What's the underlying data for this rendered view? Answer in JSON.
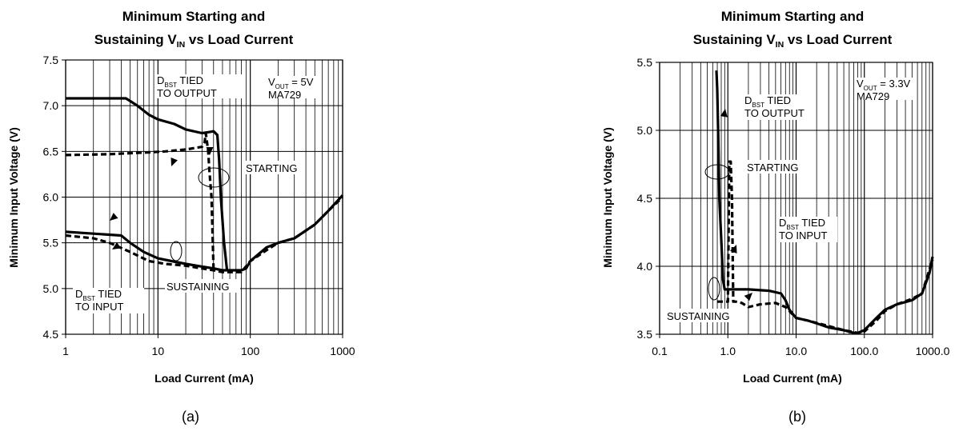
{
  "chart_data": [
    {
      "type": "line",
      "caption": "(a)",
      "title": [
        "Minimum Starting and",
        "Sustaining V",
        "IN",
        " vs Load Current"
      ],
      "xlabel": "Load Current (mA)",
      "ylabel": "Minimum Input Voltage (V)",
      "xscale": "log",
      "xlim": [
        1,
        1000
      ],
      "ylim": [
        4.5,
        7.5
      ],
      "xticks": [
        "1",
        "10",
        "100",
        "1000"
      ],
      "yticks": [
        "4.5",
        "5.0",
        "5.5",
        "6.0",
        "6.5",
        "7.0",
        "7.5"
      ],
      "grid": true,
      "annotations": {
        "dbst_output": [
          "D",
          "BST",
          " TIED",
          "TO OUTPUT"
        ],
        "vout": [
          "V",
          "OUT",
          " = 5V",
          "MA729"
        ],
        "starting": "STARTING",
        "sustaining": "SUSTAINING",
        "dbst_input": [
          "D",
          "BST",
          " TIED",
          "TO INPUT"
        ]
      },
      "series": [
        {
          "style": "solid",
          "x": [
            1,
            3,
            4.5,
            6,
            8,
            10,
            15,
            20,
            30,
            35,
            40,
            44,
            46,
            48,
            52,
            56
          ],
          "y": [
            7.08,
            7.08,
            7.08,
            7.0,
            6.9,
            6.85,
            6.8,
            6.74,
            6.7,
            6.71,
            6.72,
            6.68,
            6.4,
            6.0,
            5.5,
            5.2
          ]
        },
        {
          "style": "dashed",
          "x": [
            1,
            3,
            5,
            8,
            12,
            20,
            30,
            32,
            33,
            34,
            35,
            36,
            38,
            40
          ],
          "y": [
            6.46,
            6.47,
            6.48,
            6.49,
            6.5,
            6.52,
            6.55,
            6.6,
            6.7,
            6.6,
            6.5,
            6.3,
            6.0,
            5.2
          ]
        },
        {
          "style": "solid",
          "x": [
            1,
            2,
            4,
            5,
            7,
            10,
            14,
            20,
            30,
            40,
            50,
            60,
            80,
            90,
            100,
            150,
            200,
            300,
            500,
            700,
            1000
          ],
          "y": [
            5.62,
            5.6,
            5.58,
            5.5,
            5.4,
            5.33,
            5.3,
            5.27,
            5.24,
            5.22,
            5.2,
            5.2,
            5.2,
            5.22,
            5.3,
            5.45,
            5.5,
            5.55,
            5.7,
            5.85,
            6.02
          ]
        },
        {
          "style": "dashed",
          "x": [
            1,
            2,
            3,
            5,
            8,
            12,
            20,
            30,
            40,
            50,
            60,
            80,
            100,
            150,
            200,
            300,
            500,
            700,
            1000
          ],
          "y": [
            5.58,
            5.55,
            5.5,
            5.4,
            5.3,
            5.27,
            5.25,
            5.22,
            5.2,
            5.18,
            5.18,
            5.18,
            5.3,
            5.42,
            5.5,
            5.55,
            5.7,
            5.85,
            6.0
          ]
        }
      ]
    },
    {
      "type": "line",
      "caption": "(b)",
      "title": [
        "Minimum Starting and",
        "Sustaining V",
        "IN",
        " vs Load Current"
      ],
      "xlabel": "Load Current (mA)",
      "ylabel": "Minimum Input Voltage (V)",
      "xscale": "log",
      "xlim": [
        0.1,
        1000
      ],
      "ylim": [
        3.5,
        5.5
      ],
      "xticks": [
        "0.1",
        "1.0",
        "10.0",
        "100.0",
        "1000.0"
      ],
      "yticks": [
        "3.5",
        "4.0",
        "4.5",
        "5.0",
        "5.5"
      ],
      "grid": true,
      "annotations": {
        "dbst_output": [
          "D",
          "BST",
          " TIED",
          "TO OUTPUT"
        ],
        "vout": [
          "V",
          "OUT",
          " = 3.3V",
          "MA729"
        ],
        "starting": "STARTING",
        "sustaining": "SUSTAINING",
        "dbst_input": [
          "D",
          "BST",
          " TIED",
          "TO INPUT"
        ]
      },
      "series": [
        {
          "style": "solid",
          "x": [
            0.68,
            0.7,
            0.72,
            0.75,
            0.8,
            0.85,
            0.9,
            1.0,
            2,
            4,
            6,
            7,
            8,
            10,
            15,
            20,
            30,
            50,
            70,
            80,
            100,
            150,
            200,
            300,
            500,
            700,
            900,
            1000
          ],
          "y": [
            5.44,
            5.3,
            5.0,
            4.5,
            4.2,
            3.9,
            3.83,
            3.83,
            3.83,
            3.82,
            3.8,
            3.75,
            3.68,
            3.62,
            3.6,
            3.58,
            3.55,
            3.53,
            3.51,
            3.51,
            3.53,
            3.62,
            3.68,
            3.72,
            3.75,
            3.8,
            3.95,
            4.07
          ]
        },
        {
          "style": "dashed",
          "x": [
            0.7,
            0.8,
            1.0,
            1.05,
            1.1,
            1.15,
            1.2,
            1.3,
            1.6,
            2,
            3,
            5,
            7,
            10,
            15,
            30,
            50,
            80,
            100,
            150,
            200,
            300,
            500,
            700,
            1000
          ],
          "y": [
            3.74,
            3.74,
            3.74,
            4.77,
            4.77,
            4.5,
            3.74,
            3.74,
            3.73,
            3.7,
            3.72,
            3.73,
            3.7,
            3.62,
            3.6,
            3.56,
            3.53,
            3.51,
            3.52,
            3.6,
            3.67,
            3.72,
            3.76,
            3.8,
            4.05
          ]
        }
      ]
    }
  ]
}
